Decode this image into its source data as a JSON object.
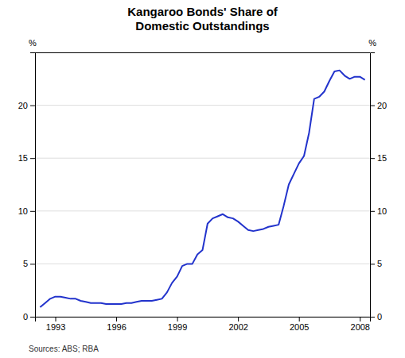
{
  "chart_data": {
    "type": "line",
    "title": "Kangaroo Bonds' Share of\nDomestic Outstandings",
    "ylabel": "%",
    "y2label": "%",
    "source": "Sources: ABS; RBA",
    "color": "#2233CC",
    "xlim": [
      1992.0,
      2008.5
    ],
    "xticks": [
      1993,
      1996,
      1999,
      2002,
      2005,
      2008
    ],
    "ylim": [
      0,
      25
    ],
    "yticks": [
      0,
      5,
      10,
      15,
      20
    ],
    "y2lim": [
      0,
      25
    ],
    "y2ticks": [
      0,
      5,
      10,
      15,
      20
    ],
    "grid": true,
    "x": [
      1992.25,
      1992.5,
      1992.75,
      1993.0,
      1993.25,
      1993.5,
      1993.75,
      1994.0,
      1994.25,
      1994.5,
      1994.75,
      1995.0,
      1995.25,
      1995.5,
      1995.75,
      1996.0,
      1996.25,
      1996.5,
      1996.75,
      1997.0,
      1997.25,
      1997.5,
      1997.75,
      1998.0,
      1998.25,
      1998.5,
      1998.75,
      1999.0,
      1999.25,
      1999.5,
      1999.75,
      2000.0,
      2000.25,
      2000.5,
      2000.75,
      2001.0,
      2001.25,
      2001.5,
      2001.75,
      2002.0,
      2002.25,
      2002.5,
      2002.75,
      2003.0,
      2003.25,
      2003.5,
      2003.75,
      2004.0,
      2004.25,
      2004.5,
      2004.75,
      2005.0,
      2005.25,
      2005.5,
      2005.75,
      2006.0,
      2006.25,
      2006.5,
      2006.75,
      2007.0,
      2007.25,
      2007.5,
      2007.75,
      2008.0,
      2008.25
    ],
    "values": [
      0.9,
      1.3,
      1.7,
      1.9,
      1.9,
      1.8,
      1.7,
      1.7,
      1.5,
      1.4,
      1.3,
      1.3,
      1.3,
      1.2,
      1.2,
      1.2,
      1.2,
      1.3,
      1.3,
      1.4,
      1.5,
      1.5,
      1.5,
      1.6,
      1.7,
      2.3,
      3.2,
      3.8,
      4.8,
      5.0,
      5.0,
      5.9,
      6.3,
      8.8,
      9.3,
      9.5,
      9.7,
      9.4,
      9.3,
      9.0,
      8.6,
      8.2,
      8.1,
      8.2,
      8.3,
      8.5,
      8.6,
      8.7,
      10.5,
      12.5,
      13.5,
      14.5,
      15.2,
      17.4,
      20.6,
      20.8,
      21.3,
      22.3,
      23.2,
      23.3,
      22.8,
      22.5,
      22.7,
      22.7,
      22.4
    ]
  }
}
